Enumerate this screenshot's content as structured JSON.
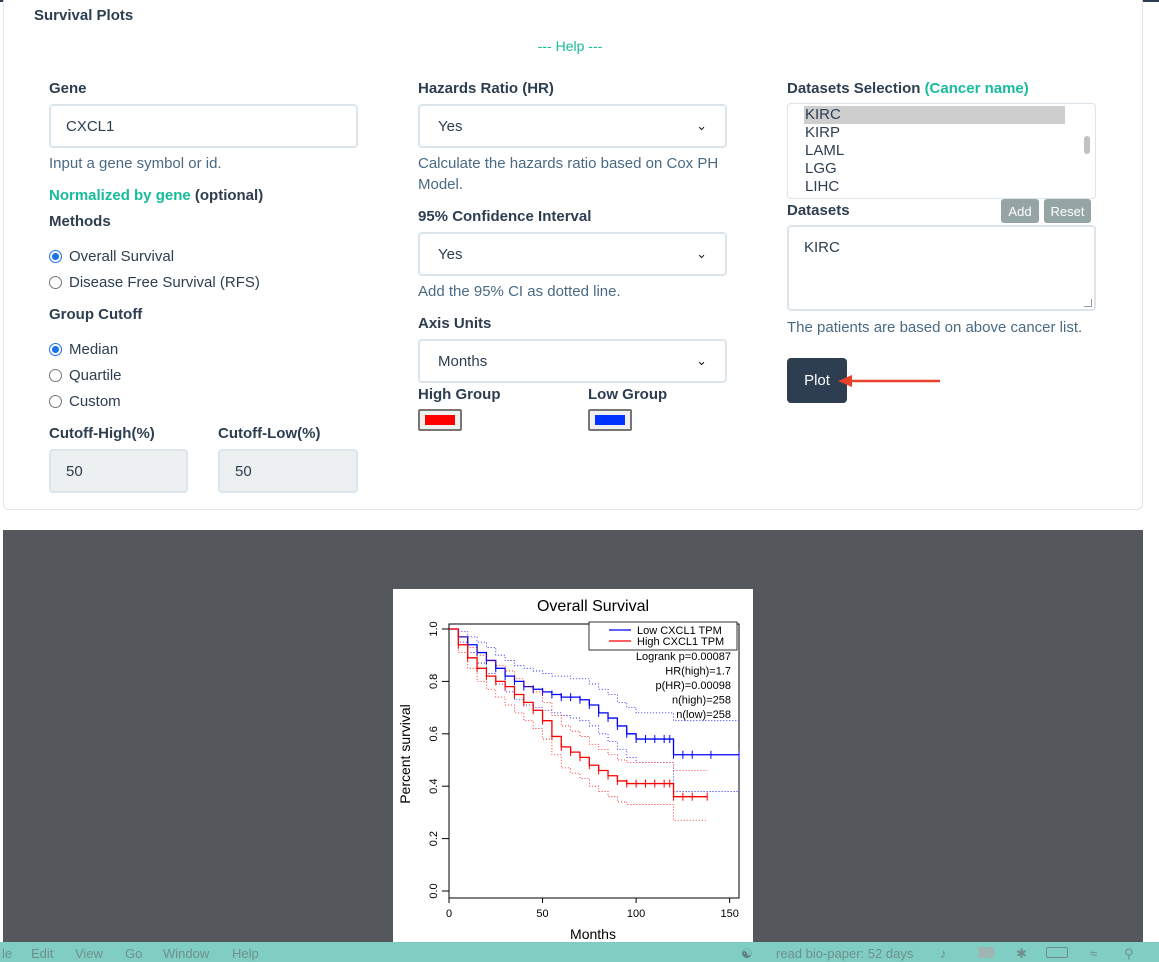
{
  "section_title": "Survival Plots",
  "help_link": "--- Help ---",
  "gene": {
    "label": "Gene",
    "value": "CXCL1",
    "hint": "Input a gene symbol or id.",
    "normalized_link": "Normalized by gene",
    "optional": "(optional)"
  },
  "methods": {
    "label": "Methods",
    "options": [
      "Overall Survival",
      "Disease Free Survival (RFS)"
    ],
    "selected": "Overall Survival"
  },
  "group_cutoff": {
    "label": "Group Cutoff",
    "options": [
      "Median",
      "Quartile",
      "Custom"
    ],
    "selected": "Median"
  },
  "cutoff_high": {
    "label": "Cutoff-High(%)",
    "value": "50"
  },
  "cutoff_low": {
    "label": "Cutoff-Low(%)",
    "value": "50"
  },
  "hazards_ratio": {
    "label": "Hazards Ratio (HR)",
    "value": "Yes",
    "hint": "Calculate the hazards ratio based on Cox PH Model."
  },
  "confidence_interval": {
    "label": "95% Confidence Interval",
    "value": "Yes",
    "hint": "Add the 95% CI as dotted line."
  },
  "axis_units": {
    "label": "Axis Units",
    "value": "Months"
  },
  "high_group": {
    "label": "High Group",
    "color": "#ff0000"
  },
  "low_group": {
    "label": "Low Group",
    "color": "#0033ff"
  },
  "datasets_selection": {
    "label": "Datasets Selection",
    "label_note": "(Cancer name)",
    "options": [
      "KIRC",
      "KIRP",
      "LAML",
      "LGG",
      "LIHC"
    ],
    "selected": "KIRC"
  },
  "datasets": {
    "label": "Datasets",
    "add_button": "Add",
    "reset_button": "Reset",
    "value": "KIRC",
    "hint": "The patients are based on above cancer list."
  },
  "plot_button": "Plot",
  "colors": {
    "accent": "#18bc9c",
    "primary": "#2c3e50",
    "arrow": "#e8402a"
  },
  "chart_data": {
    "type": "line",
    "title": "Overall Survival",
    "xlabel": "Months",
    "ylabel": "Percent survival",
    "xlim": [
      0,
      155
    ],
    "ylim": [
      0,
      1.0
    ],
    "xticks": [
      0,
      50,
      100,
      150
    ],
    "yticks": [
      0.0,
      0.2,
      0.4,
      0.6,
      0.8,
      1.0
    ],
    "legend_position": "top-right",
    "legend": [
      "Low CXCL1 TPM",
      "High CXCL1 TPM"
    ],
    "stats": [
      "Logrank p=0.00087",
      "HR(high)=1.7",
      "p(HR)=0.00098",
      "n(high)=258",
      "n(low)=258"
    ],
    "series": [
      {
        "name": "Low CXCL1 TPM",
        "color": "#0000ff",
        "x": [
          0,
          5,
          10,
          15,
          20,
          25,
          30,
          35,
          40,
          45,
          50,
          55,
          60,
          65,
          70,
          75,
          80,
          85,
          90,
          95,
          100,
          105,
          110,
          115,
          118,
          120,
          125,
          130,
          140,
          155
        ],
        "y": [
          1.0,
          0.97,
          0.94,
          0.91,
          0.88,
          0.85,
          0.82,
          0.8,
          0.78,
          0.77,
          0.76,
          0.75,
          0.74,
          0.74,
          0.73,
          0.71,
          0.68,
          0.66,
          0.63,
          0.6,
          0.58,
          0.58,
          0.58,
          0.58,
          0.58,
          0.52,
          0.52,
          0.52,
          0.52,
          0.52
        ],
        "ci_upper": [
          1.0,
          0.99,
          0.97,
          0.95,
          0.93,
          0.9,
          0.88,
          0.86,
          0.85,
          0.84,
          0.83,
          0.82,
          0.82,
          0.81,
          0.81,
          0.79,
          0.77,
          0.75,
          0.72,
          0.7,
          0.68,
          0.68,
          0.68,
          0.68,
          0.68,
          0.65,
          0.65,
          0.65,
          0.65,
          0.65
        ],
        "ci_lower": [
          1.0,
          0.95,
          0.91,
          0.87,
          0.83,
          0.79,
          0.76,
          0.73,
          0.71,
          0.7,
          0.69,
          0.68,
          0.67,
          0.66,
          0.65,
          0.63,
          0.6,
          0.57,
          0.54,
          0.51,
          0.49,
          0.49,
          0.49,
          0.49,
          0.49,
          0.38,
          0.38,
          0.38,
          0.38,
          0.38
        ]
      },
      {
        "name": "High CXCL1 TPM",
        "color": "#ff0000",
        "x": [
          0,
          5,
          10,
          15,
          20,
          25,
          30,
          35,
          40,
          45,
          50,
          55,
          60,
          65,
          70,
          75,
          80,
          85,
          90,
          95,
          100,
          105,
          110,
          115,
          118,
          120,
          125,
          130,
          138
        ],
        "y": [
          1.0,
          0.94,
          0.89,
          0.85,
          0.82,
          0.8,
          0.78,
          0.75,
          0.72,
          0.69,
          0.65,
          0.59,
          0.55,
          0.53,
          0.51,
          0.48,
          0.46,
          0.44,
          0.42,
          0.41,
          0.41,
          0.41,
          0.41,
          0.41,
          0.41,
          0.36,
          0.36,
          0.36,
          0.36
        ],
        "ci_upper": [
          1.0,
          0.97,
          0.93,
          0.9,
          0.88,
          0.86,
          0.84,
          0.81,
          0.78,
          0.76,
          0.72,
          0.67,
          0.63,
          0.61,
          0.59,
          0.56,
          0.54,
          0.52,
          0.5,
          0.49,
          0.49,
          0.49,
          0.49,
          0.49,
          0.49,
          0.46,
          0.46,
          0.46,
          0.46
        ],
        "ci_lower": [
          1.0,
          0.91,
          0.85,
          0.8,
          0.77,
          0.74,
          0.71,
          0.68,
          0.65,
          0.62,
          0.58,
          0.52,
          0.47,
          0.45,
          0.43,
          0.4,
          0.38,
          0.36,
          0.34,
          0.33,
          0.33,
          0.33,
          0.33,
          0.33,
          0.33,
          0.27,
          0.27,
          0.27,
          0.27
        ]
      }
    ]
  },
  "menubar": {
    "items": [
      "le",
      "Edit",
      "View",
      "Go",
      "Window",
      "Help"
    ],
    "status": "read bio-paper: 52 days"
  }
}
